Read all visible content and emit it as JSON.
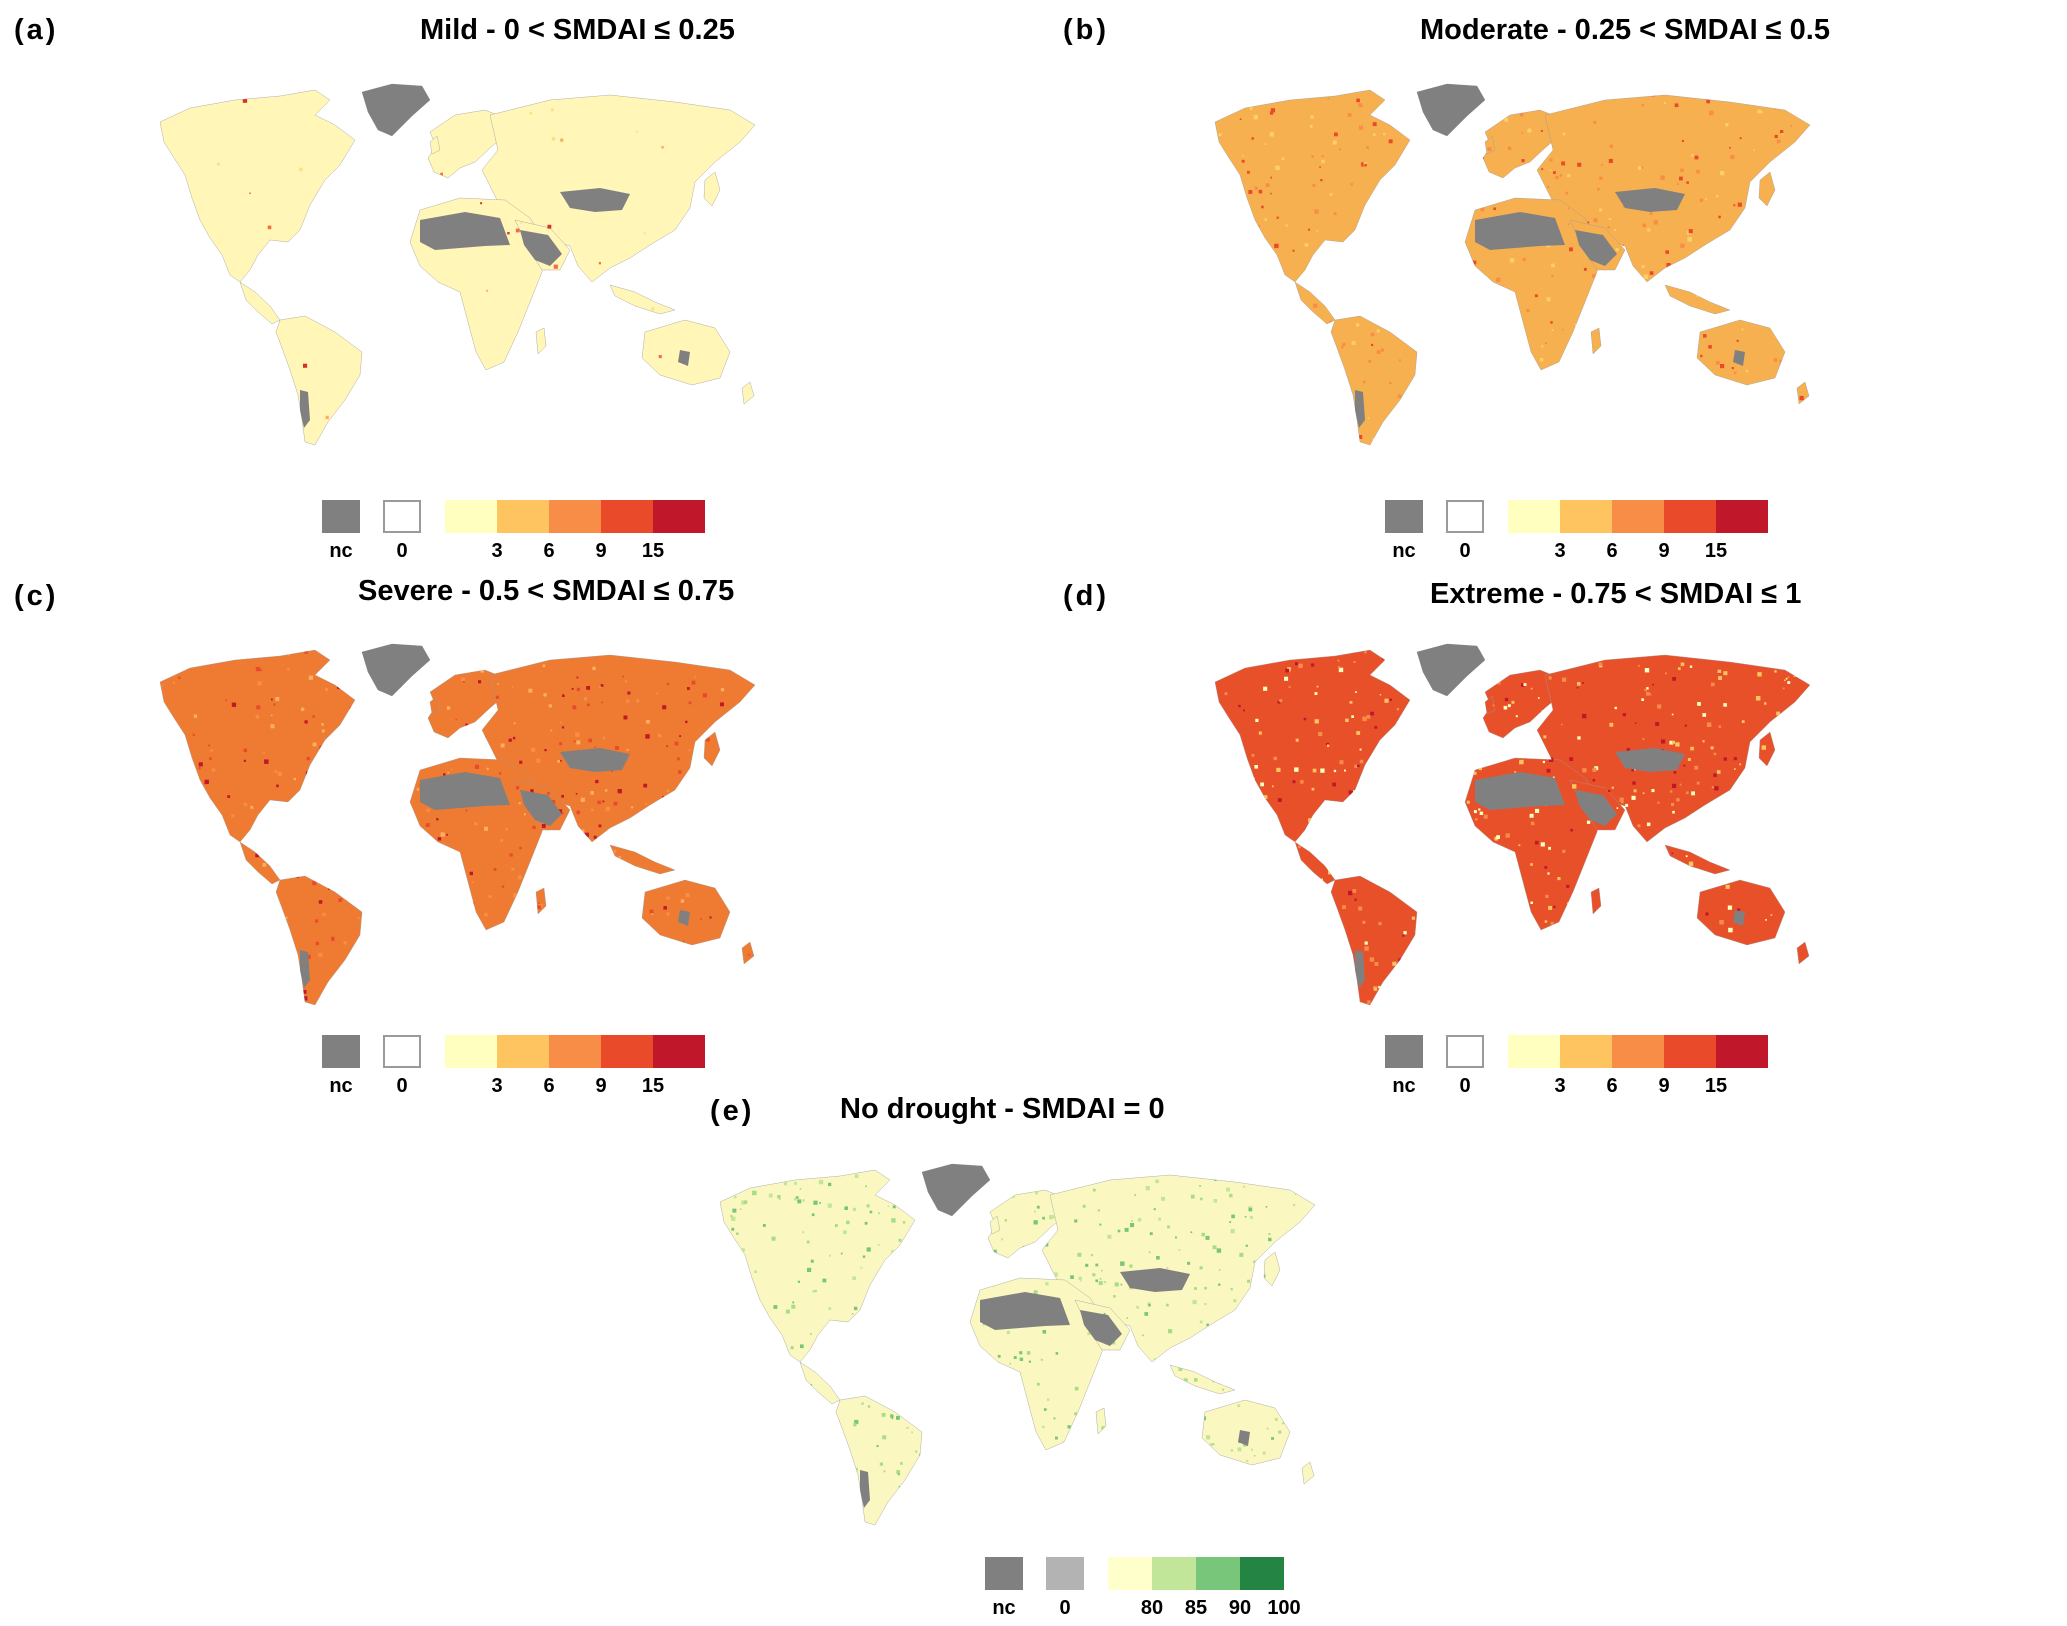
{
  "panels": [
    {
      "id": "a",
      "letter": "(a)",
      "title": "Mild - 0 < SMDAI ≤ 0.25",
      "scheme": "mild"
    },
    {
      "id": "b",
      "letter": "(b)",
      "title": "Moderate - 0.25 < SMDAI ≤ 0.5",
      "scheme": "moderate"
    },
    {
      "id": "c",
      "letter": "(c)",
      "title": "Severe -  0.5 < SMDAI ≤ 0.75",
      "scheme": "severe"
    },
    {
      "id": "d",
      "letter": "(d)",
      "title": "Extreme -  0.75 < SMDAI ≤ 1",
      "scheme": "extreme"
    },
    {
      "id": "e",
      "letter": "(e)",
      "title": "No drought - SMDAI = 0",
      "scheme": "nodrought"
    }
  ],
  "legend_drought": {
    "nc_label": "nc",
    "zero_label": "0",
    "ticks": [
      "3",
      "6",
      "9",
      "15"
    ],
    "colors": [
      "#ffffbf",
      "#fec460",
      "#f88d47",
      "#e94a2a",
      "#c0172b"
    ]
  },
  "legend_nodrought": {
    "nc_label": "nc",
    "zero_label": "0",
    "ticks": [
      "80",
      "85",
      "90",
      "100"
    ],
    "colors": [
      "#ffffcc",
      "#c2e699",
      "#78c679",
      "#238443"
    ]
  },
  "colors": {
    "no_calculation": "#808080",
    "mild_base": "#fff6b8",
    "moderate_base": "#f7b04f",
    "severe_base": "#ef7b32",
    "extreme_base": "#e8502a",
    "nodrought_base": "#fbf7c0"
  }
}
